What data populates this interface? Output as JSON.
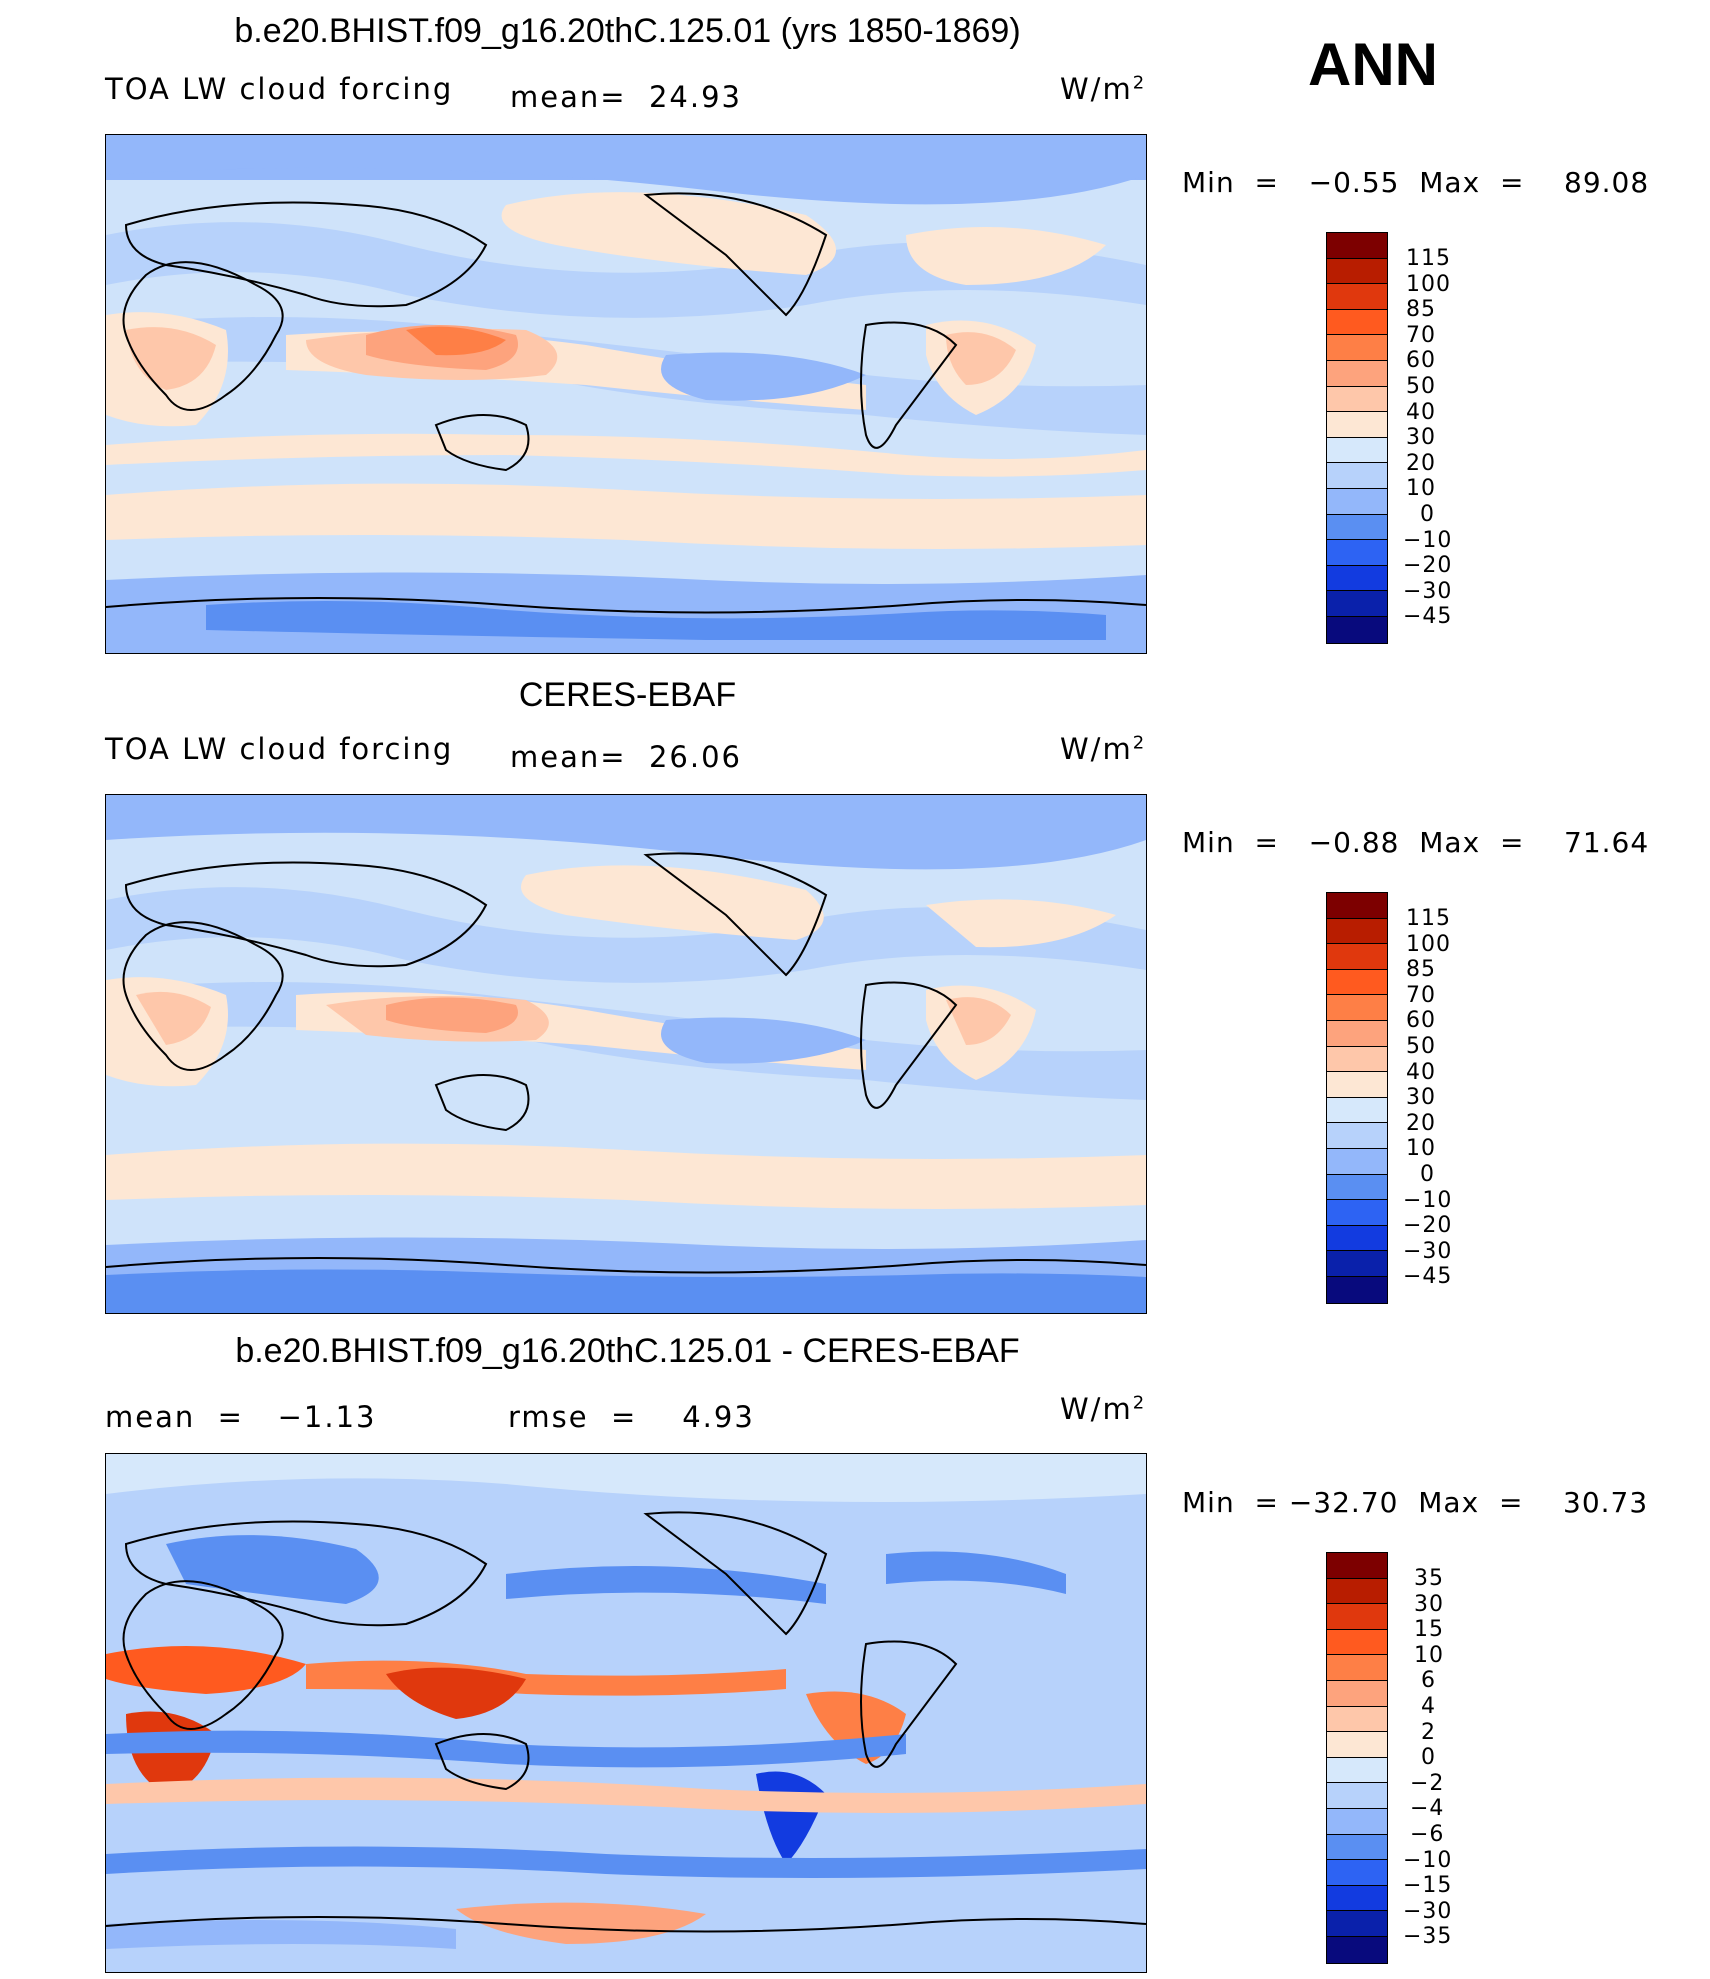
{
  "season": "ANN",
  "units": "W/m",
  "units_sup": "2",
  "panels": [
    {
      "title": "b.e20.BHIST.f09_g16.20thC.125.01 (yrs 1850-1869)",
      "left_label": "TOA LW cloud forcing",
      "middle_label": "mean=  24.93",
      "min_max": "Min  =   −0.55  Max  =    89.08",
      "colorbar_ticks": [
        "115",
        "100",
        "85",
        "70",
        "60",
        "50",
        "40",
        "30",
        "20",
        "10",
        "0",
        "−10",
        "−20",
        "−30",
        "−45"
      ]
    },
    {
      "title": "CERES-EBAF",
      "left_label": "TOA LW cloud forcing",
      "middle_label": "mean=  26.06",
      "min_max": "Min  =   −0.88  Max  =    71.64",
      "colorbar_ticks": [
        "115",
        "100",
        "85",
        "70",
        "60",
        "50",
        "40",
        "30",
        "20",
        "10",
        "0",
        "−10",
        "−20",
        "−30",
        "−45"
      ]
    },
    {
      "title": "b.e20.BHIST.f09_g16.20thC.125.01 - CERES-EBAF",
      "left_label": "mean  =   −1.13",
      "middle_label": "rmse  =    4.93",
      "min_max": "Min  = −32.70  Max  =    30.73",
      "colorbar_ticks": [
        "35",
        "30",
        "15",
        "10",
        "6",
        "4",
        "2",
        "0",
        "−2",
        "−4",
        "−6",
        "−10",
        "−15",
        "−30",
        "−35"
      ]
    }
  ],
  "colors": {
    "colorbar": [
      "#7d0000",
      "#b81d00",
      "#e0380d",
      "#ff5a1f",
      "#fe7f46",
      "#fda37d",
      "#fec7aa",
      "#fde7d4",
      "#d6e8fb",
      "#b7d2fb",
      "#93b7fa",
      "#5a8ff2",
      "#2d63f3",
      "#123be0",
      "#0a21ab",
      "#080a7d"
    ]
  }
}
